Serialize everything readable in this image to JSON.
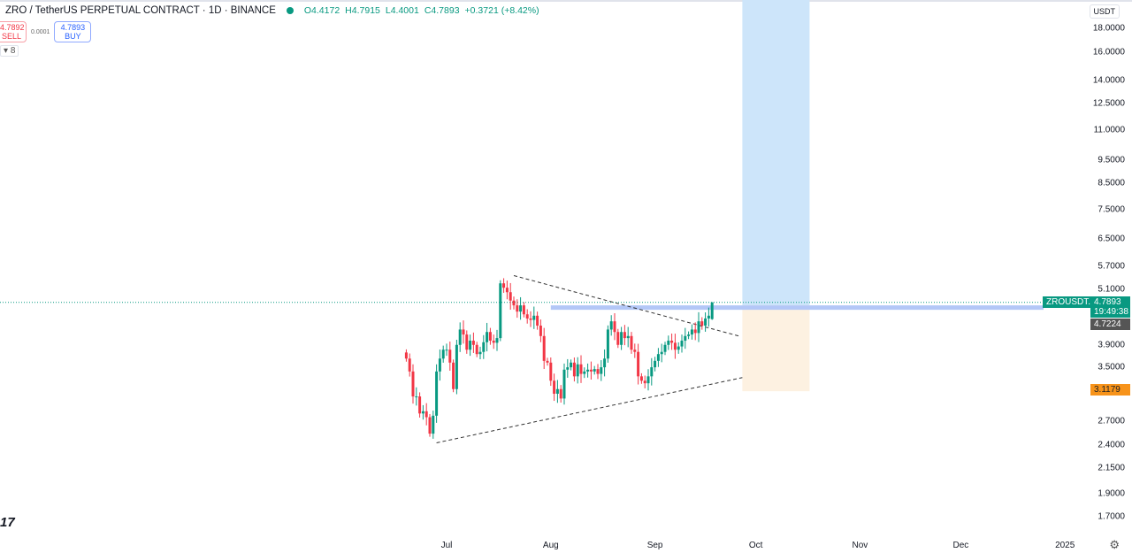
{
  "header": {
    "symbol_title": "ZRO / TetherUS PERPETUAL CONTRACT · 1D · BINANCE",
    "open": "O4.4172",
    "high": "H4.7915",
    "low": "L4.4001",
    "close": "C4.7893",
    "change": "+0.3721 (+8.42%)"
  },
  "trade": {
    "sell_price": "4.7892",
    "sell_label": "SELL",
    "spread": "0.0001",
    "buy_price": "4.7893",
    "buy_label": "BUY"
  },
  "indicator_toggle": "8",
  "currency": "USDT",
  "logo_text": "17",
  "chart_data": {
    "type": "candlestick",
    "scale": "log",
    "start_date": "2024-06-19",
    "closes": [
      3.65,
      3.43,
      3.04,
      3.04,
      2.8,
      2.83,
      2.75,
      2.54,
      2.77,
      3.43,
      3.65,
      3.81,
      3.81,
      3.58,
      3.15,
      3.9,
      4.2,
      4.1,
      3.81,
      3.98,
      3.9,
      3.73,
      3.77,
      3.95,
      4.15,
      3.98,
      3.94,
      4.03,
      5.25,
      5.14,
      5.03,
      4.83,
      4.72,
      4.58,
      4.72,
      4.52,
      4.43,
      4.4,
      4.49,
      4.28,
      4.07,
      3.61,
      3.58,
      3.28,
      3.08,
      3.15,
      3.01,
      3.46,
      3.5,
      3.58,
      3.35,
      3.55,
      3.39,
      3.43,
      3.46,
      3.43,
      3.47,
      3.39,
      3.5,
      3.65,
      4.2,
      4.37,
      4.15,
      3.9,
      4.15,
      4.03,
      4.07,
      3.81,
      3.77,
      3.35,
      3.28,
      3.24,
      3.35,
      3.5,
      3.61,
      3.73,
      3.77,
      3.9,
      3.98,
      3.94,
      3.81,
      3.87,
      3.98,
      4.07,
      4.1,
      4.2,
      4.13,
      4.37,
      4.28,
      4.43,
      4.49,
      4.79
    ],
    "last_candle": {
      "open": 4.4172,
      "high": 4.7915,
      "low": 4.4001,
      "close": 4.7893
    },
    "price_axis": [
      "18.0000",
      "16.0000",
      "14.0000",
      "12.5000",
      "11.0000",
      "9.5000",
      "8.5000",
      "7.5000",
      "6.5000",
      "5.7000",
      "5.1000",
      "3.9000",
      "3.5000",
      "2.7000",
      "2.4000",
      "2.1500",
      "1.9000",
      "1.7000"
    ],
    "price_axis_values": [
      18,
      16,
      14,
      12.5,
      11,
      9.5,
      8.5,
      7.5,
      6.5,
      5.7,
      5.1,
      3.9,
      3.5,
      2.7,
      2.4,
      2.15,
      1.9,
      1.7
    ],
    "time_axis": [
      "Jul",
      "Aug",
      "Sep",
      "Oct",
      "Nov",
      "Dec",
      "2025"
    ],
    "time_axis_dates": [
      "2024-07-01",
      "2024-08-01",
      "2024-09-01",
      "2024-10-01",
      "2024-11-01",
      "2024-12-01",
      "2025-01-01"
    ],
    "current_price": {
      "symbol": "ZROUSDT.P",
      "price": "4.7893",
      "countdown": "19:49:38",
      "value": 4.7893
    },
    "entry_price": {
      "label": "4.7224",
      "value": 4.7224
    },
    "stop_price": {
      "label": "3.1179",
      "value": 3.1179
    },
    "target_price": 22,
    "position_dates": [
      "2024-09-27",
      "2024-10-17"
    ],
    "resistance_zone": {
      "from_date": "2024-08-01",
      "low": 4.62,
      "high": 4.72
    },
    "triangle_upper": [
      [
        "2024-07-21",
        5.45
      ],
      [
        "2024-09-26",
        4.07
      ]
    ],
    "triangle_lower": [
      [
        "2024-06-28",
        2.43
      ],
      [
        "2024-09-27",
        3.33
      ]
    ],
    "colors": {
      "up": "#089981",
      "down": "#f23645",
      "target": "#cde5fa",
      "stop": "#fdf1e1"
    }
  }
}
